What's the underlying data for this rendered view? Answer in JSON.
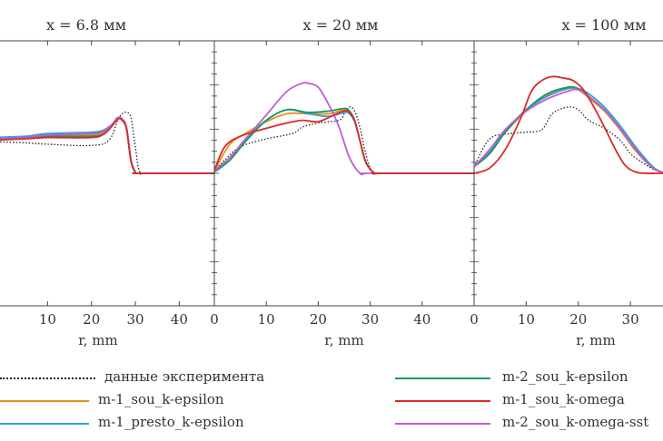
{
  "chart_data": [
    {
      "type": "line",
      "title": "x = 6.8 мм",
      "xlabel": "r, mm",
      "xlim": [
        -2.5,
        48
      ],
      "ylim": [
        -1,
        1
      ],
      "x_ticks": [
        "10",
        "20",
        "30",
        "40"
      ],
      "grid": false,
      "series": [
        {
          "name": "данные эксперимента",
          "x": [
            -3,
            5,
            10,
            20,
            24,
            26,
            27,
            28,
            29,
            30,
            31,
            33,
            48
          ],
          "y": [
            0.24,
            0.23,
            0.22,
            0.21,
            0.25,
            0.4,
            0.45,
            0.46,
            0.42,
            0.2,
            0.01,
            0.0,
            0.0
          ]
        },
        {
          "name": "m-2_sou_k-epsilon",
          "x": [
            -3,
            5,
            10,
            20,
            23,
            25,
            26,
            27,
            28,
            29,
            30,
            31,
            48
          ],
          "y": [
            0.25,
            0.27,
            0.28,
            0.28,
            0.3,
            0.38,
            0.42,
            0.41,
            0.34,
            0.1,
            0.01,
            0.0,
            0.0
          ]
        },
        {
          "name": "m-1_sou_k-epsilon",
          "x": [
            -3,
            5,
            10,
            20,
            23,
            25,
            26,
            27,
            28,
            29,
            30,
            31,
            48
          ],
          "y": [
            0.26,
            0.27,
            0.28,
            0.29,
            0.31,
            0.38,
            0.42,
            0.41,
            0.34,
            0.1,
            0.01,
            0.0,
            0.0
          ]
        },
        {
          "name": "m-1_sou_k-omega",
          "x": [
            -3,
            5,
            10,
            20,
            23,
            25,
            26,
            27,
            28,
            29,
            30,
            31,
            48
          ],
          "y": [
            0.25,
            0.26,
            0.27,
            0.27,
            0.3,
            0.37,
            0.41,
            0.4,
            0.33,
            0.09,
            0.01,
            0.0,
            0.0
          ]
        },
        {
          "name": "m-1_presto_k-epsilon",
          "x": [
            -3,
            5,
            10,
            20,
            23,
            25,
            26,
            27,
            28,
            29,
            30,
            31,
            48
          ],
          "y": [
            0.27,
            0.28,
            0.3,
            0.31,
            0.33,
            0.38,
            0.42,
            0.41,
            0.34,
            0.1,
            0.01,
            0.0,
            0.0
          ]
        },
        {
          "name": "m-2_sou_k-omega-sst",
          "x": [
            -3,
            5,
            10,
            20,
            23,
            25,
            26,
            27,
            28,
            29,
            30,
            31,
            48
          ],
          "y": [
            0.26,
            0.27,
            0.29,
            0.3,
            0.32,
            0.38,
            0.42,
            0.41,
            0.34,
            0.1,
            0.01,
            0.0,
            0.0
          ]
        }
      ]
    },
    {
      "type": "line",
      "title": "x = 20 мм",
      "xlabel": "r, mm",
      "xlim": [
        0,
        50
      ],
      "ylim": [
        -1,
        1
      ],
      "x_ticks": [
        "0",
        "10",
        "20",
        "30",
        "40"
      ],
      "grid": false,
      "series": [
        {
          "name": "данные эксперимента",
          "x": [
            0,
            2,
            5,
            10,
            15,
            17,
            20,
            24,
            25,
            26,
            27,
            28,
            29,
            30,
            31,
            32,
            50
          ],
          "y": [
            0.02,
            0.1,
            0.2,
            0.26,
            0.3,
            0.35,
            0.38,
            0.4,
            0.45,
            0.5,
            0.47,
            0.35,
            0.17,
            0.04,
            0.0,
            0.0,
            0.0
          ]
        },
        {
          "name": "m-2_sou_k-epsilon",
          "x": [
            0,
            3,
            6,
            10,
            14,
            18,
            22,
            25,
            26,
            27,
            28,
            29,
            30,
            31,
            32,
            50
          ],
          "y": [
            0.01,
            0.1,
            0.24,
            0.4,
            0.48,
            0.46,
            0.47,
            0.49,
            0.47,
            0.4,
            0.25,
            0.1,
            0.03,
            0.0,
            0.0,
            0.0
          ]
        },
        {
          "name": "m-1_sou_k-epsilon",
          "x": [
            0,
            3,
            6,
            10,
            14,
            18,
            22,
            25,
            26,
            27,
            28,
            29,
            30,
            31,
            32,
            50
          ],
          "y": [
            0.02,
            0.22,
            0.3,
            0.39,
            0.45,
            0.45,
            0.45,
            0.48,
            0.47,
            0.4,
            0.25,
            0.1,
            0.03,
            0.0,
            0.0,
            0.0
          ]
        },
        {
          "name": "m-1_sou_k-omega",
          "x": [
            0,
            2,
            5,
            10,
            14,
            17,
            20,
            23,
            25,
            26,
            27,
            28,
            29,
            30,
            31,
            32,
            50
          ],
          "y": [
            0.02,
            0.2,
            0.28,
            0.34,
            0.38,
            0.4,
            0.39,
            0.44,
            0.47,
            0.46,
            0.4,
            0.25,
            0.1,
            0.03,
            0.0,
            0.0,
            0.0
          ]
        },
        {
          "name": "m-1_presto_k-epsilon",
          "x": [
            0,
            3,
            6,
            10,
            14,
            18,
            22,
            25,
            26,
            27,
            28,
            29,
            30,
            31,
            32,
            50
          ],
          "y": [
            0.01,
            0.1,
            0.25,
            0.4,
            0.48,
            0.45,
            0.43,
            0.46,
            0.45,
            0.39,
            0.25,
            0.1,
            0.03,
            0.0,
            0.0,
            0.0
          ]
        },
        {
          "name": "m-2_sou_k-omega-sst",
          "x": [
            0,
            3,
            6,
            10,
            14,
            17,
            18,
            20,
            22,
            24,
            26,
            28,
            29,
            30,
            50
          ],
          "y": [
            0.02,
            0.12,
            0.26,
            0.44,
            0.62,
            0.68,
            0.68,
            0.65,
            0.52,
            0.35,
            0.12,
            0.0,
            0.0,
            0.0,
            0.0
          ]
        }
      ]
    },
    {
      "type": "line",
      "title": "x = 100 мм",
      "xlabel": "r, mm",
      "xlim": [
        0,
        38
      ],
      "ylim": [
        -1,
        1
      ],
      "x_ticks": [
        "0",
        "10",
        "20",
        "30"
      ],
      "grid": false,
      "series": [
        {
          "name": "данные эксперимента",
          "x": [
            0,
            3,
            7,
            10,
            13,
            15,
            18,
            20,
            22,
            25,
            28,
            30,
            32,
            35,
            38
          ],
          "y": [
            0.05,
            0.26,
            0.3,
            0.31,
            0.33,
            0.45,
            0.5,
            0.48,
            0.4,
            0.34,
            0.25,
            0.15,
            0.09,
            0.02,
            0.0
          ]
        },
        {
          "name": "m-2_sou_k-epsilon",
          "x": [
            0,
            3,
            6,
            10,
            14,
            18,
            20,
            22,
            25,
            28,
            31,
            34,
            36,
            38
          ],
          "y": [
            0.05,
            0.15,
            0.31,
            0.48,
            0.6,
            0.65,
            0.64,
            0.58,
            0.48,
            0.34,
            0.18,
            0.05,
            0.01,
            0.0
          ]
        },
        {
          "name": "m-1_sou_k-epsilon",
          "x": [
            0,
            3,
            6,
            10,
            14,
            18,
            20,
            22,
            25,
            28,
            31,
            34,
            36,
            38
          ],
          "y": [
            0.05,
            0.15,
            0.31,
            0.47,
            0.59,
            0.64,
            0.63,
            0.57,
            0.47,
            0.33,
            0.17,
            0.05,
            0.01,
            0.0
          ]
        },
        {
          "name": "m-1_sou_k-omega",
          "x": [
            0,
            3,
            6,
            9,
            11,
            13,
            15,
            17,
            19,
            21,
            23,
            25,
            27,
            29,
            31,
            33,
            35,
            38
          ],
          "y": [
            0.0,
            0.04,
            0.18,
            0.42,
            0.62,
            0.7,
            0.73,
            0.72,
            0.7,
            0.63,
            0.5,
            0.35,
            0.19,
            0.06,
            0.01,
            0.0,
            0.0,
            0.0
          ]
        },
        {
          "name": "m-1_presto_k-epsilon",
          "x": [
            0,
            3,
            6,
            10,
            14,
            18,
            20,
            22,
            25,
            28,
            31,
            34,
            36,
            38
          ],
          "y": [
            0.06,
            0.16,
            0.32,
            0.48,
            0.58,
            0.64,
            0.64,
            0.6,
            0.5,
            0.36,
            0.2,
            0.06,
            0.01,
            0.0
          ]
        },
        {
          "name": "m-2_sou_k-omega-sst",
          "x": [
            0,
            3,
            6,
            10,
            14,
            18,
            20,
            22,
            25,
            28,
            31,
            34,
            36,
            38
          ],
          "y": [
            0.05,
            0.18,
            0.33,
            0.47,
            0.56,
            0.62,
            0.63,
            0.58,
            0.48,
            0.34,
            0.18,
            0.05,
            0.01,
            0.0
          ]
        }
      ]
    }
  ],
  "legend": {
    "items": [
      {
        "label": "данные эксперимента",
        "color": "#222222",
        "style": "dotted"
      },
      {
        "label": "m-2_sou_k-epsilon",
        "color": "#1a9a5a",
        "style": "solid"
      },
      {
        "label": "m-1_sou_k-epsilon",
        "color": "#e8901e",
        "style": "solid"
      },
      {
        "label": "m-1_sou_k-omega",
        "color": "#d92b26",
        "style": "solid"
      },
      {
        "label": "m-1_presto_k-epsilon",
        "color": "#2aa2e0",
        "style": "solid"
      },
      {
        "label": "m-2_sou_k-omega-sst",
        "color": "#c35ad0",
        "style": "solid"
      }
    ]
  }
}
